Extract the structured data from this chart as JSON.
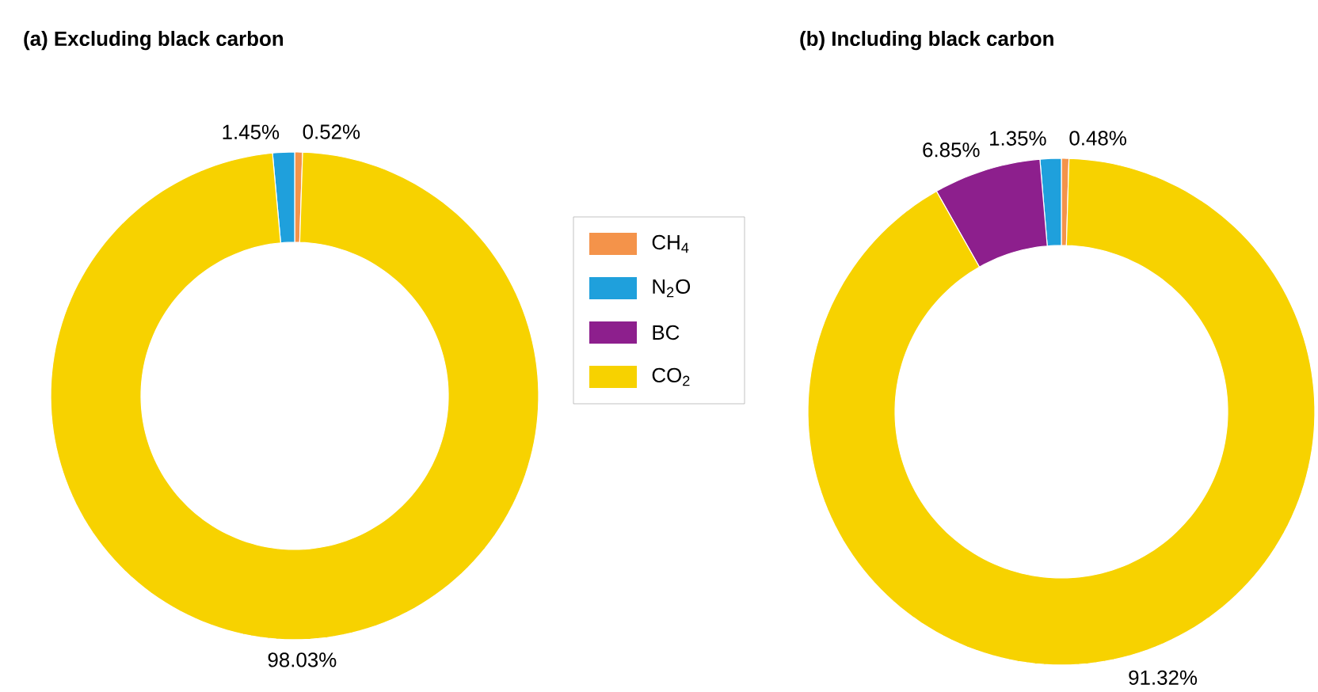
{
  "chart_data": [
    {
      "type": "donut",
      "title": "(a) Excluding black carbon",
      "categories": [
        "CH$_{4}$",
        "N$_{2}$O",
        "BC",
        "CO$_{2}$"
      ],
      "values": [
        0.52,
        1.45,
        null,
        98.03
      ],
      "colors": [
        "#f4934a",
        "#1fa0dc",
        "#8d1f8d",
        "#f7d200"
      ],
      "value_labels": [
        "0.52%",
        "1.45%",
        null,
        "98.03%"
      ],
      "legend": "right"
    },
    {
      "type": "donut",
      "title": "(b) Including black carbon",
      "categories": [
        null,
        null,
        null,
        null
      ],
      "values": [
        0.48,
        1.35,
        6.85,
        91.32
      ],
      "colors": [
        "#f4934a",
        "#1fa0dc",
        "#8d1f8d",
        "#f7d200"
      ],
      "value_labels": [
        "0.48%",
        "1.35%",
        "6.85%",
        "91.32%"
      ]
    }
  ]
}
